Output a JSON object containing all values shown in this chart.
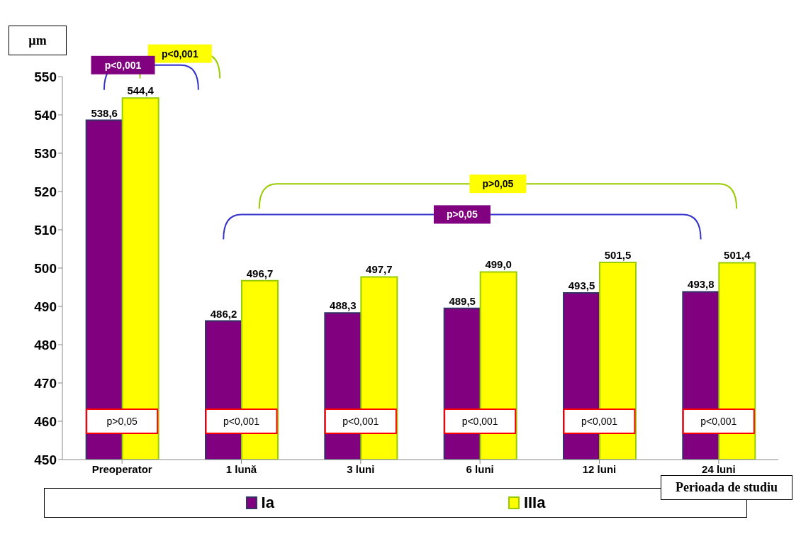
{
  "chart_data": {
    "type": "bar",
    "categories": [
      "Preoperator",
      "1 lună",
      "3 luni",
      "6 luni",
      "12 luni",
      "24 luni"
    ],
    "series": [
      {
        "name": "Ia",
        "color": "#800080",
        "values": [
          538.6,
          486.2,
          488.3,
          489.5,
          493.5,
          493.8
        ],
        "value_labels": [
          "538,6",
          "486,2",
          "488,3",
          "489,5",
          "493,5",
          "493,8"
        ]
      },
      {
        "name": "IIIa",
        "color": "#ffff00",
        "values": [
          544.4,
          496.7,
          497.7,
          499.0,
          501.5,
          501.4
        ],
        "value_labels": [
          "544,4",
          "496,7",
          "497,7",
          "499,0",
          "501,5",
          "501,4"
        ]
      }
    ],
    "ylabel": "µm",
    "xlabel": "Perioada de studiu",
    "ylim": [
      450,
      550
    ],
    "yticks": [
      450,
      460,
      470,
      480,
      490,
      500,
      510,
      520,
      530,
      540,
      550
    ],
    "grid": false,
    "legend": "bottom",
    "annotations": [
      "p<0,001",
      "p<0,001",
      "p>0,05",
      "p>0,05",
      {
        "text": "p>0,05",
        "x": "Preoperator",
        "y": 460
      },
      {
        "text": "p<0,001",
        "x": "1 lună",
        "y": 460
      },
      {
        "text": "p<0,001",
        "x": "3 luni",
        "y": 460
      },
      {
        "text": "p<0,001",
        "x": "6 luni",
        "y": 460
      },
      {
        "text": "p<0,001",
        "x": "12 luni",
        "y": 460
      },
      {
        "text": "p<0,001",
        "x": "24 luni",
        "y": 460
      }
    ]
  }
}
